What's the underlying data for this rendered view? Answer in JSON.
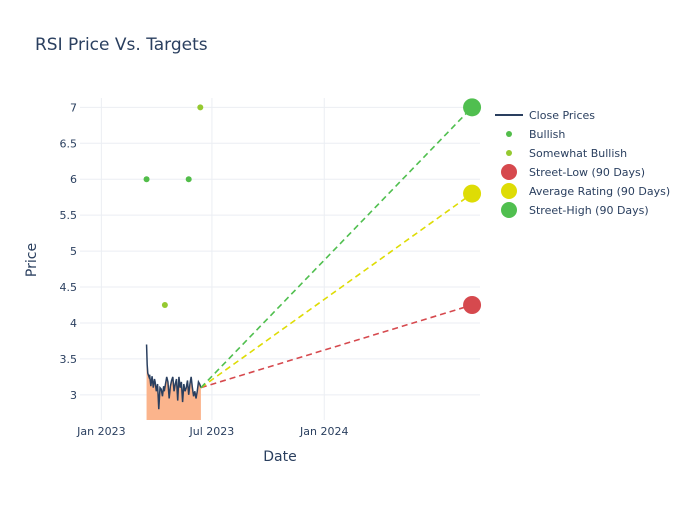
{
  "chart_data": {
    "type": "line",
    "title": "RSI Price Vs. Targets",
    "xlabel": "Date",
    "ylabel": "Price",
    "x_range": [
      "2022-11-27",
      "2024-09-12"
    ],
    "y_range": [
      2.65,
      7.13
    ],
    "x_ticks": [
      {
        "date": "2023-01-01",
        "label": "Jan 2023"
      },
      {
        "date": "2023-07-01",
        "label": "Jul 2023"
      },
      {
        "date": "2024-01-01",
        "label": "Jan 2024"
      }
    ],
    "y_ticks": [
      {
        "value": 3,
        "label": "3"
      },
      {
        "value": 3.5,
        "label": "3.5"
      },
      {
        "value": 4,
        "label": "4"
      },
      {
        "value": 4.5,
        "label": "4.5"
      },
      {
        "value": 5,
        "label": "5"
      },
      {
        "value": 5.5,
        "label": "5.5"
      },
      {
        "value": 6,
        "label": "6"
      },
      {
        "value": 6.5,
        "label": "6.5"
      },
      {
        "value": 7,
        "label": "7"
      }
    ],
    "close_prices": {
      "name": "Close Prices",
      "color": "#2a3f5f",
      "fill_color": "#fbb48c",
      "x": [
        "2023-03-16",
        "2023-03-17",
        "2023-03-18",
        "2023-03-20",
        "2023-03-21",
        "2023-03-23",
        "2023-03-25",
        "2023-03-27",
        "2023-03-29",
        "2023-03-30",
        "2023-04-01",
        "2023-04-03",
        "2023-04-05",
        "2023-04-07",
        "2023-04-09",
        "2023-04-11",
        "2023-04-13",
        "2023-04-14",
        "2023-04-16",
        "2023-04-18",
        "2023-04-20",
        "2023-04-22",
        "2023-04-24",
        "2023-04-26",
        "2023-04-28",
        "2023-04-30",
        "2023-05-02",
        "2023-05-04",
        "2023-05-06",
        "2023-05-08",
        "2023-05-10",
        "2023-05-12",
        "2023-05-14",
        "2023-05-16",
        "2023-05-18",
        "2023-05-20",
        "2023-05-22",
        "2023-05-24",
        "2023-05-26",
        "2023-05-28",
        "2023-05-30",
        "2023-06-01",
        "2023-06-03",
        "2023-06-05",
        "2023-06-07",
        "2023-06-09",
        "2023-06-11",
        "2023-06-13"
      ],
      "y": [
        3.7,
        3.42,
        3.3,
        3.25,
        3.28,
        3.12,
        3.26,
        3.1,
        3.22,
        3.18,
        3.05,
        3.15,
        2.8,
        3.1,
        3.08,
        2.98,
        3.12,
        3.05,
        3.15,
        3.25,
        3.18,
        2.95,
        3.12,
        3.2,
        3.25,
        3.05,
        3.15,
        3.22,
        2.92,
        3.25,
        3.1,
        3.18,
        2.9,
        3.15,
        3.05,
        3.1,
        3.2,
        3.0,
        3.15,
        3.25,
        3.1,
        2.98,
        3.05,
        2.95,
        3.05,
        3.18,
        3.15,
        3.1
      ]
    },
    "ratings": [
      {
        "name": "Bullish",
        "color": "#52bd4a",
        "points": [
          {
            "x": "2023-03-16",
            "y": 6
          },
          {
            "x": "2023-05-24",
            "y": 6
          }
        ]
      },
      {
        "name": "Somewhat Bullish",
        "color": "#95c930",
        "points": [
          {
            "x": "2023-04-15",
            "y": 4.25
          },
          {
            "x": "2023-06-12",
            "y": 7
          }
        ]
      }
    ],
    "targets": [
      {
        "name": "Street-Low (90 Days)",
        "color": "#d6494e",
        "value": 4.25
      },
      {
        "name": "Average Rating (90 Days)",
        "color": "#dedc05",
        "value": 5.8
      },
      {
        "name": "Street-High (90 Days)",
        "color": "#50bf4f",
        "value": 7
      }
    ],
    "target_start": {
      "x": "2023-06-13",
      "y": 3.1
    },
    "target_date": "2024-08-30",
    "legend": {
      "placement": "top-right",
      "items": [
        {
          "label": "Close Prices",
          "kind": "line",
          "color": "#2a3f5f"
        },
        {
          "label": "Bullish",
          "kind": "small-dot",
          "color": "#52bd4a"
        },
        {
          "label": "Somewhat Bullish",
          "kind": "small-dot",
          "color": "#95c930"
        },
        {
          "label": "Street-Low (90 Days)",
          "kind": "big-dot",
          "color": "#d6494e"
        },
        {
          "label": "Average Rating (90 Days)",
          "kind": "big-dot",
          "color": "#dedc05"
        },
        {
          "label": "Street-High (90 Days)",
          "kind": "big-dot",
          "color": "#50bf4f"
        }
      ]
    },
    "grid": true
  }
}
